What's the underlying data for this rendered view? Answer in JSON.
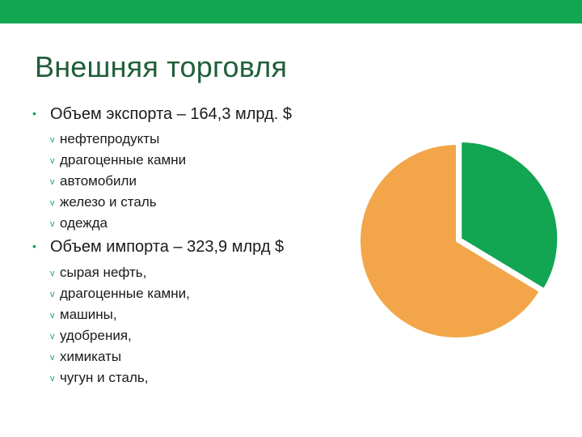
{
  "slide": {
    "title": "Внешняя торговля",
    "accent_color": "#12a552",
    "title_color": "#1f5f3a"
  },
  "bullets": [
    {
      "marker": "•",
      "text": "Объем экспорта – 164,3 млрд. $",
      "subitems": [
        "нефтепродукты",
        "драгоценные камни",
        "автомобили",
        "железо и сталь",
        "одежда"
      ]
    },
    {
      "marker": "•",
      "text": "Объем импорта – 323,9 млрд $",
      "subitems": [
        "сырая нефть,",
        "драгоценные камни,",
        "машины,",
        "удобрения,",
        "химикаты",
        "чугун и сталь,"
      ]
    }
  ],
  "sub_marker": "v",
  "chart_data": {
    "type": "pie",
    "title": "",
    "slices": [
      {
        "value": 164.3,
        "color": "#12a552"
      },
      {
        "value": 323.9,
        "color": "#f2a649"
      }
    ],
    "exploded_slice_index": 0,
    "start_angle_deg": 0
  }
}
